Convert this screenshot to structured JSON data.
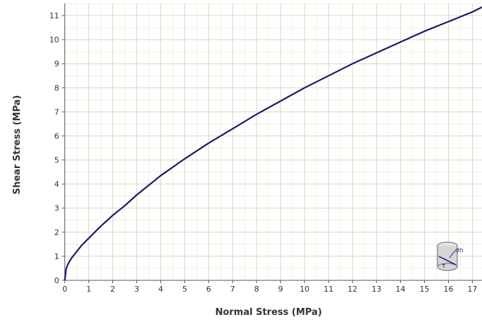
{
  "chart_data": {
    "type": "line",
    "xlabel": "Normal Stress (MPa)",
    "ylabel": "Shear Stress (MPa)",
    "xlim": [
      -0.05,
      17.4
    ],
    "ylim": [
      0,
      11.5
    ],
    "xticks": [
      0,
      1,
      2,
      3,
      4,
      5,
      6,
      7,
      8,
      9,
      10,
      11,
      12,
      13,
      14,
      15,
      16,
      17
    ],
    "yticks": [
      0,
      1,
      2,
      3,
      4,
      5,
      6,
      7,
      8,
      9,
      10,
      11
    ],
    "minor_per_major": 2,
    "grid": true,
    "series": [
      {
        "color": "#1a1a6e",
        "x": [
          0,
          0.05,
          0.1,
          0.2,
          0.3,
          0.5,
          0.7,
          1.0,
          1.5,
          2.0,
          2.5,
          3.0,
          3.5,
          4.0,
          4.5,
          5.0,
          6.0,
          7.0,
          8.0,
          9.0,
          10.0,
          11.0,
          12.0,
          13.0,
          14.0,
          15.0,
          16.0,
          17.0,
          17.4
        ],
        "y": [
          0,
          0.45,
          0.6,
          0.8,
          0.95,
          1.2,
          1.45,
          1.75,
          2.25,
          2.7,
          3.1,
          3.55,
          3.95,
          4.35,
          4.7,
          5.05,
          5.7,
          6.3,
          6.9,
          7.45,
          8.0,
          8.5,
          9.0,
          9.45,
          9.9,
          10.35,
          10.75,
          11.15,
          11.35
        ]
      }
    ]
  },
  "legend_icon": {
    "label_normal": "σn",
    "label_shear": "τ"
  }
}
